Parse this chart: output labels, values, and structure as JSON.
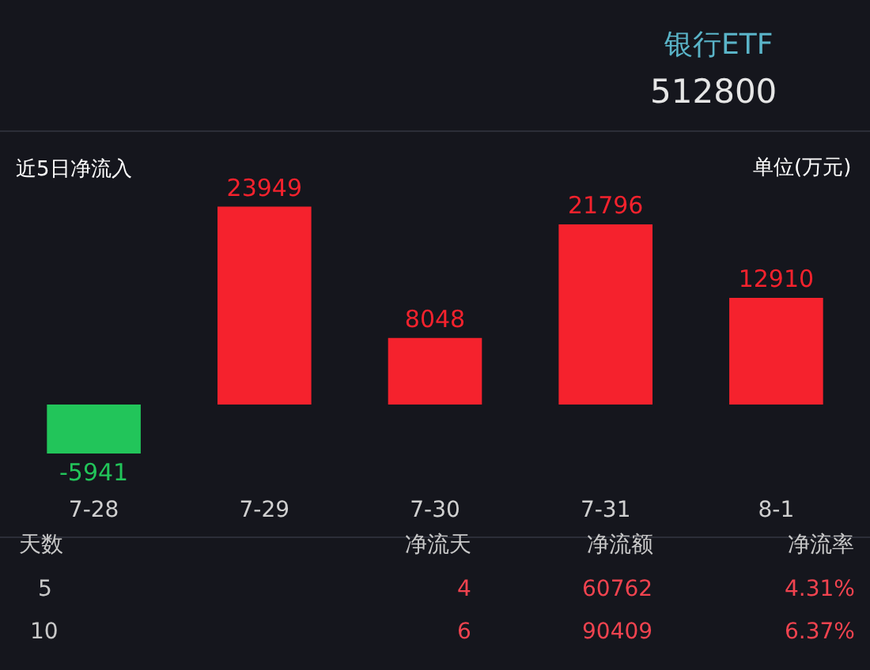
{
  "chart_data": {
    "type": "bar",
    "title": "银行ETF",
    "subtitle": "512800",
    "categories": [
      "7-28",
      "7-29",
      "7-30",
      "7-31",
      "8-1"
    ],
    "values": [
      -5941,
      23949,
      8048,
      21796,
      12910
    ],
    "colors": [
      "#22c55a",
      "#f5222d",
      "#f5222d",
      "#f5222d",
      "#f5222d"
    ],
    "data_labels": true,
    "annotations": [
      "近5日净流入",
      "单位(万元)",
      "天数",
      "净流天",
      "净流额",
      "净流率",
      "5",
      "4",
      "60762",
      "4.31%",
      "10",
      "6",
      "90409",
      "6.37%"
    ]
  }
}
